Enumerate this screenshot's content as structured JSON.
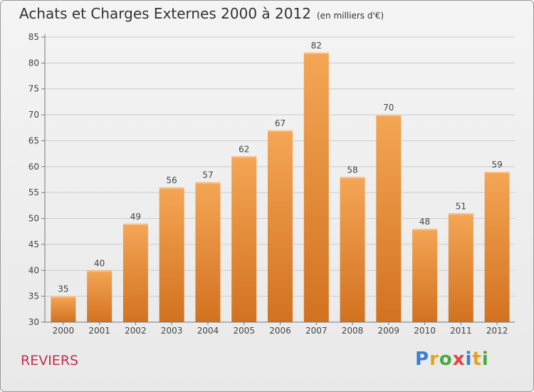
{
  "header": {
    "title": "Achats et Charges Externes 2000 à 2012",
    "unit": "(en milliers d'€)"
  },
  "footer": {
    "town": "REVIERS",
    "brand": "Proxiti",
    "brand_colors": [
      "#3a7fd0",
      "#e8a020",
      "#4aa83c",
      "#e84040",
      "#3a7fd0",
      "#e8a020",
      "#4aa83c"
    ]
  },
  "colors": {
    "bar": "#ec8e3a",
    "bar_dark": "#d0701e",
    "grid": "#cccccc"
  },
  "chart_data": {
    "type": "bar",
    "categories": [
      "2000",
      "2001",
      "2002",
      "2003",
      "2004",
      "2005",
      "2006",
      "2007",
      "2008",
      "2009",
      "2010",
      "2011",
      "2012"
    ],
    "values": [
      35,
      40,
      49,
      56,
      57,
      62,
      67,
      82,
      58,
      70,
      48,
      51,
      59
    ],
    "ylim": [
      30,
      85
    ],
    "yticks": [
      30,
      35,
      40,
      45,
      50,
      55,
      60,
      65,
      70,
      75,
      80,
      85
    ],
    "grid": true
  }
}
